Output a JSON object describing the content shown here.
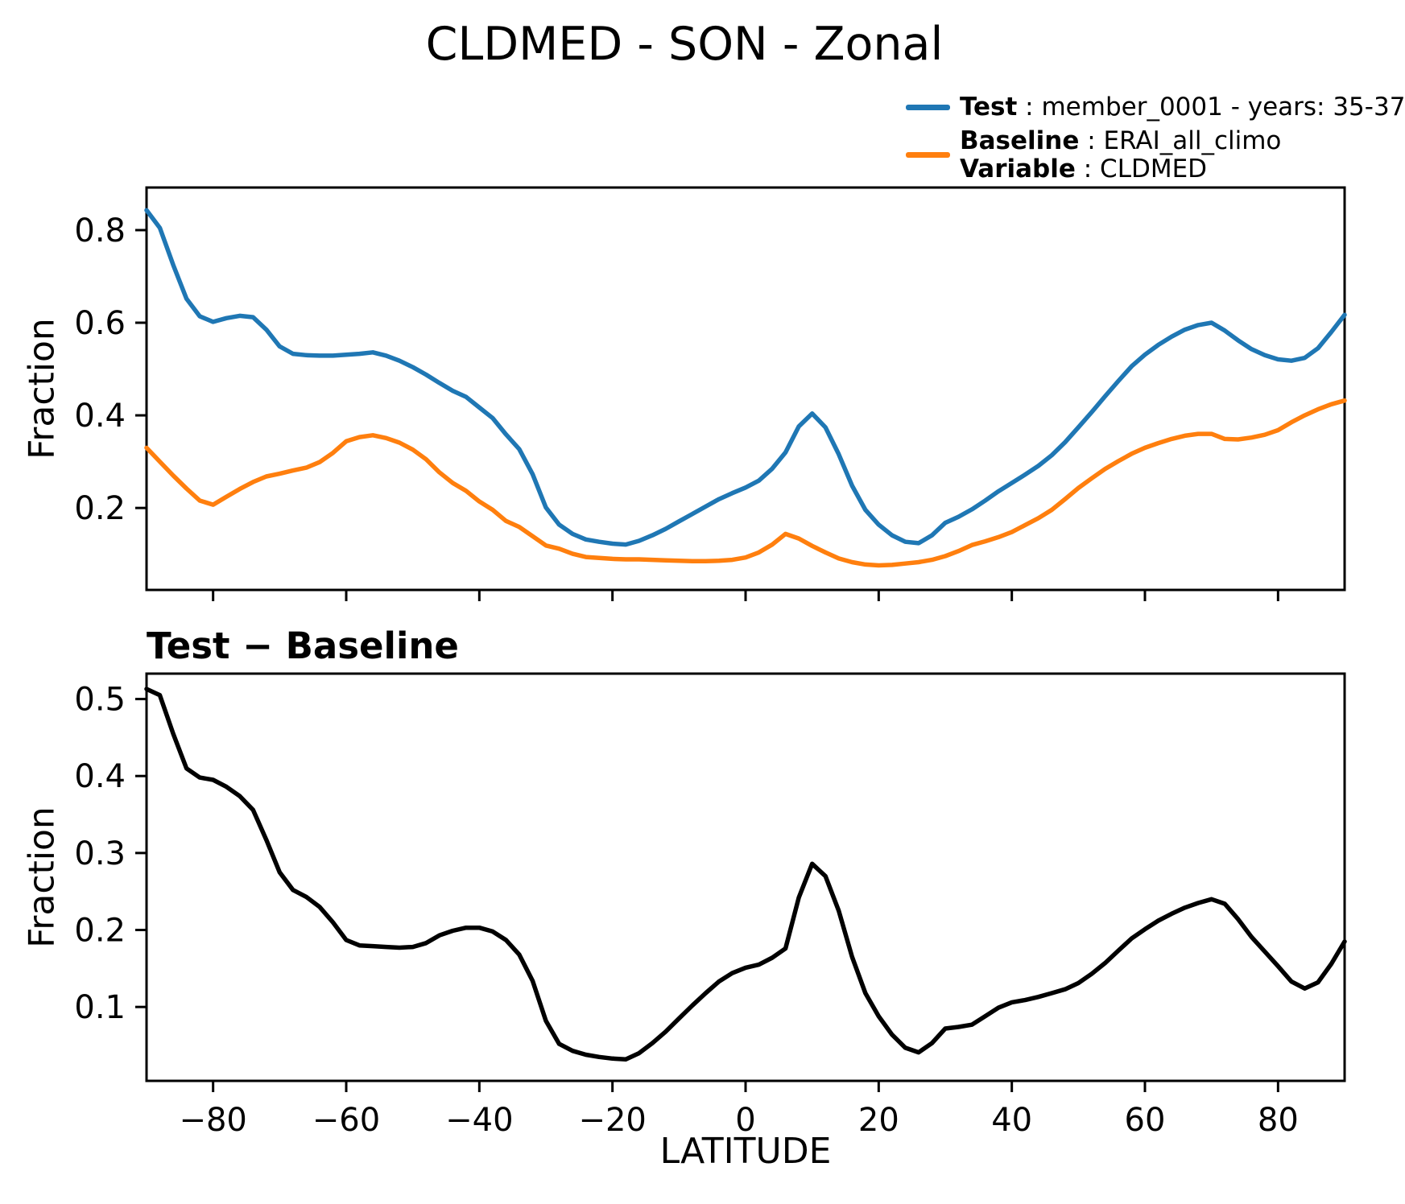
{
  "figure": {
    "title": "CLDMED - SON - Zonal",
    "legend": {
      "items": [
        {
          "name_bold": "Test",
          "rest": " : member_0001 - years: 35-37",
          "color": "#1f77b4"
        },
        {
          "name_bold": "Baseline",
          "rest": " : ERAI_all_climo",
          "name2_bold": "Variable",
          "rest2": " : CLDMED",
          "color": "#ff7f0e"
        }
      ]
    }
  },
  "chart_data": {
    "type": "line",
    "title": "CLDMED - SON - Zonal",
    "xlabel": "LATITUDE",
    "ylabel": "Fraction",
    "grid": false,
    "legend_position": "upper-right above axes, no frame",
    "x_range": [
      -90,
      90
    ],
    "x": [
      -90,
      -88,
      -86,
      -84,
      -82,
      -80,
      -78,
      -76,
      -74,
      -72,
      -70,
      -68,
      -66,
      -64,
      -62,
      -60,
      -58,
      -56,
      -54,
      -52,
      -50,
      -48,
      -46,
      -44,
      -42,
      -40,
      -38,
      -36,
      -34,
      -32,
      -30,
      -28,
      -26,
      -24,
      -22,
      -20,
      -18,
      -16,
      -14,
      -12,
      -10,
      -8,
      -6,
      -4,
      -2,
      0,
      2,
      4,
      6,
      8,
      10,
      12,
      14,
      16,
      18,
      20,
      22,
      24,
      26,
      28,
      30,
      32,
      34,
      36,
      38,
      40,
      42,
      44,
      46,
      48,
      50,
      52,
      54,
      56,
      58,
      60,
      62,
      64,
      66,
      68,
      70,
      72,
      74,
      76,
      78,
      80,
      82,
      84,
      86,
      88,
      90
    ],
    "xticks": {
      "values": [
        -80,
        -60,
        -40,
        -20,
        0,
        20,
        40,
        60,
        80
      ],
      "labels": [
        "−80",
        "−60",
        "−40",
        "−20",
        "0",
        "20",
        "40",
        "60",
        "80"
      ]
    },
    "panels": [
      {
        "title": "",
        "ylabel": "Fraction",
        "ylim": [
          0.023,
          0.892
        ],
        "yticks": [
          0.2,
          0.4,
          0.6,
          0.8
        ],
        "ytick_labels": [
          "0.2",
          "0.4",
          "0.6",
          "0.8"
        ]
      },
      {
        "title": "Test − Baseline",
        "ylabel": "Fraction",
        "ylim": [
          0.004,
          0.533
        ],
        "yticks": [
          0.1,
          0.2,
          0.3,
          0.4,
          0.5
        ],
        "ytick_labels": [
          "0.1",
          "0.2",
          "0.3",
          "0.4",
          "0.5"
        ]
      }
    ],
    "series": [
      {
        "name": "Test",
        "legend_label": "Test : member_0001 - years: 35-37",
        "color": "#1f77b4",
        "panel": 0,
        "values": [
          0.843,
          0.805,
          0.725,
          0.652,
          0.614,
          0.602,
          0.61,
          0.615,
          0.612,
          0.585,
          0.549,
          0.533,
          0.53,
          0.529,
          0.529,
          0.531,
          0.533,
          0.536,
          0.529,
          0.518,
          0.504,
          0.488,
          0.47,
          0.453,
          0.44,
          0.417,
          0.394,
          0.359,
          0.327,
          0.273,
          0.201,
          0.164,
          0.144,
          0.132,
          0.127,
          0.123,
          0.121,
          0.129,
          0.141,
          0.155,
          0.171,
          0.187,
          0.203,
          0.219,
          0.232,
          0.244,
          0.259,
          0.285,
          0.32,
          0.376,
          0.404,
          0.374,
          0.316,
          0.248,
          0.196,
          0.164,
          0.141,
          0.127,
          0.124,
          0.141,
          0.168,
          0.181,
          0.197,
          0.216,
          0.236,
          0.254,
          0.272,
          0.291,
          0.314,
          0.342,
          0.374,
          0.407,
          0.441,
          0.474,
          0.506,
          0.531,
          0.552,
          0.57,
          0.585,
          0.595,
          0.6,
          0.583,
          0.562,
          0.543,
          0.53,
          0.521,
          0.518,
          0.524,
          0.545,
          0.58,
          0.617
        ]
      },
      {
        "name": "Baseline",
        "legend_label": "Baseline : ERAI_all_climo | Variable : CLDMED",
        "color": "#ff7f0e",
        "panel": 0,
        "values": [
          0.33,
          0.3,
          0.27,
          0.242,
          0.216,
          0.207,
          0.224,
          0.241,
          0.256,
          0.268,
          0.274,
          0.281,
          0.287,
          0.299,
          0.319,
          0.344,
          0.353,
          0.357,
          0.351,
          0.341,
          0.326,
          0.305,
          0.277,
          0.254,
          0.237,
          0.214,
          0.196,
          0.172,
          0.159,
          0.139,
          0.119,
          0.112,
          0.101,
          0.094,
          0.092,
          0.09,
          0.089,
          0.089,
          0.088,
          0.087,
          0.086,
          0.085,
          0.085,
          0.086,
          0.088,
          0.093,
          0.104,
          0.121,
          0.144,
          0.134,
          0.118,
          0.104,
          0.091,
          0.083,
          0.078,
          0.076,
          0.077,
          0.08,
          0.083,
          0.088,
          0.096,
          0.107,
          0.12,
          0.128,
          0.137,
          0.148,
          0.163,
          0.178,
          0.196,
          0.219,
          0.243,
          0.264,
          0.284,
          0.301,
          0.317,
          0.33,
          0.34,
          0.349,
          0.356,
          0.36,
          0.36,
          0.349,
          0.348,
          0.352,
          0.358,
          0.368,
          0.385,
          0.4,
          0.413,
          0.424,
          0.432
        ]
      },
      {
        "name": "Test minus Baseline",
        "legend_label": "Test − Baseline",
        "color": "#000000",
        "panel": 1,
        "values": [
          0.513,
          0.505,
          0.455,
          0.41,
          0.398,
          0.395,
          0.386,
          0.374,
          0.356,
          0.317,
          0.275,
          0.252,
          0.243,
          0.23,
          0.21,
          0.187,
          0.18,
          0.179,
          0.178,
          0.177,
          0.178,
          0.183,
          0.193,
          0.199,
          0.203,
          0.203,
          0.198,
          0.187,
          0.168,
          0.134,
          0.082,
          0.052,
          0.043,
          0.038,
          0.035,
          0.033,
          0.032,
          0.04,
          0.053,
          0.068,
          0.085,
          0.102,
          0.118,
          0.133,
          0.144,
          0.151,
          0.155,
          0.164,
          0.176,
          0.242,
          0.286,
          0.27,
          0.225,
          0.165,
          0.118,
          0.088,
          0.064,
          0.047,
          0.041,
          0.053,
          0.072,
          0.074,
          0.077,
          0.088,
          0.099,
          0.106,
          0.109,
          0.113,
          0.118,
          0.123,
          0.131,
          0.143,
          0.157,
          0.173,
          0.189,
          0.201,
          0.212,
          0.221,
          0.229,
          0.235,
          0.24,
          0.234,
          0.214,
          0.191,
          0.172,
          0.153,
          0.133,
          0.124,
          0.132,
          0.156,
          0.185
        ]
      }
    ]
  }
}
